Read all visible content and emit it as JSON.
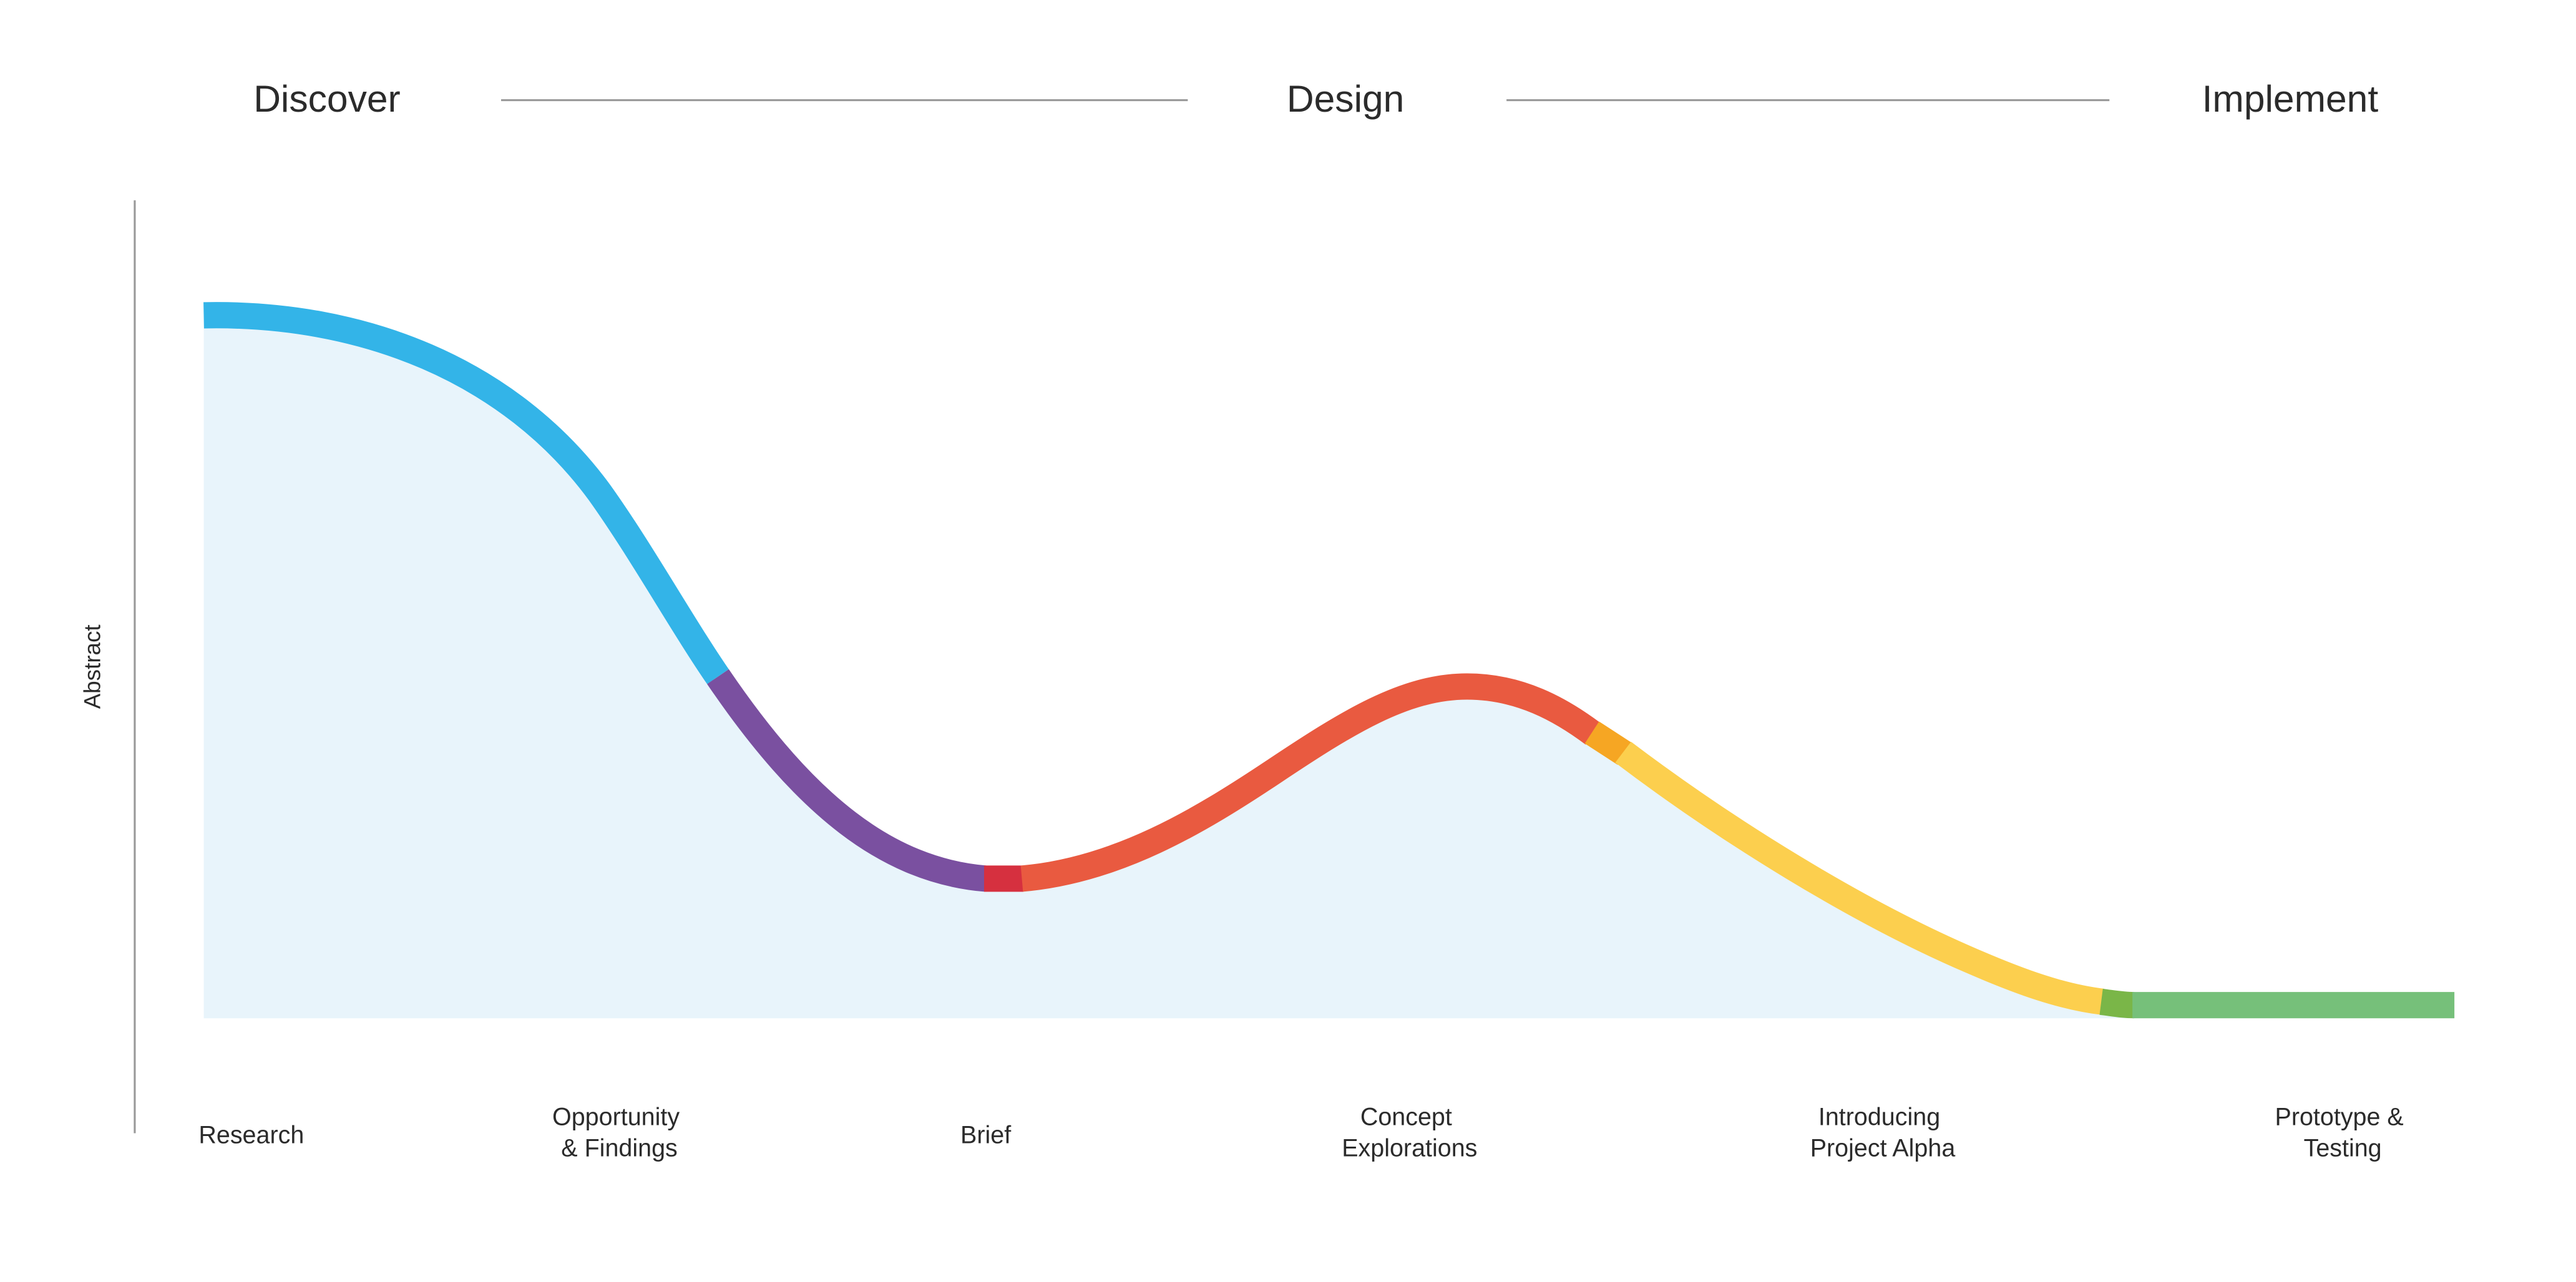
{
  "phases": [
    "Discover",
    "Design",
    "Implement"
  ],
  "y_axis_label": "Abstract",
  "stages": [
    {
      "lines": [
        "Research"
      ]
    },
    {
      "lines": [
        "Opportunity",
        "& Findings"
      ]
    },
    {
      "lines": [
        "Brief"
      ]
    },
    {
      "lines": [
        "Concept",
        "Explorations"
      ]
    },
    {
      "lines": [
        "Introducing",
        "Project Alpha"
      ]
    },
    {
      "lines": [
        "Prototype &",
        "Testing"
      ]
    }
  ],
  "colors": {
    "area": "#e8f4fb",
    "research": "#33b4e8",
    "findings": "#7a50a0",
    "brief": "#d6303f",
    "concept": "#e95a40",
    "transition": "#f6a623",
    "alpha": "#fccf4e",
    "proto_start": "#7ab648",
    "prototype": "#76c07a",
    "rule": "#9a9a9a"
  }
}
